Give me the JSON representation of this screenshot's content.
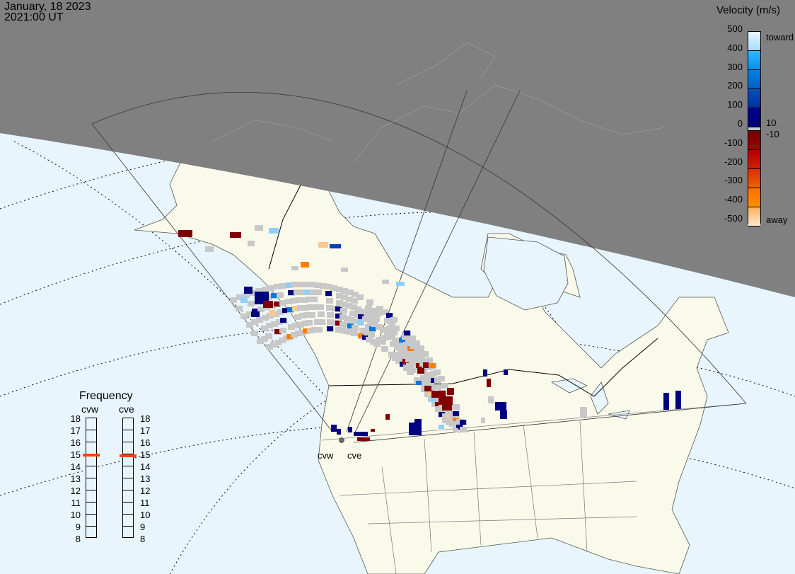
{
  "header": {
    "date": "January, 18 2023",
    "time": "2021:00 UT"
  },
  "velocity_scale": {
    "title": "Velocity (m/s)",
    "ticks": [
      "500",
      "400",
      "300",
      "200",
      "100",
      "0",
      "-100",
      "-200",
      "-300",
      "-400",
      "-500"
    ],
    "toward_label": "toward",
    "away_label": "away",
    "pos_threshold": "10",
    "neg_threshold": "-10",
    "colors_toward": [
      "#c8ecff",
      "#00a8ff",
      "#0078e0",
      "#0840b0",
      "#000080"
    ],
    "colors_away": [
      "#800000",
      "#c00000",
      "#e04000",
      "#ff8000",
      "#ffd0a0"
    ],
    "ground_scatter_color": "#c8c8c8"
  },
  "frequency": {
    "title": "Frequency",
    "ticks": [
      "18",
      "17",
      "16",
      "15",
      "14",
      "13",
      "12",
      "11",
      "10",
      "9",
      "8"
    ],
    "radars": [
      {
        "name": "cvw",
        "value_mhz": 14.9
      },
      {
        "name": "cve",
        "value_mhz": 14.8
      }
    ],
    "marker_color": "#ff4000"
  },
  "map": {
    "radar_labels": [
      "cvw",
      "cve"
    ],
    "night_color": "#808080",
    "land_color": "#fafaeb",
    "ocean_color": "#e8f5fd"
  }
}
